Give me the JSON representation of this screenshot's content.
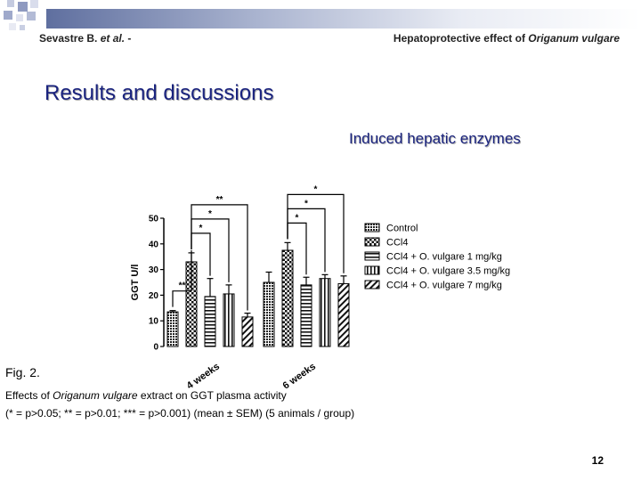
{
  "header": {
    "left_prefix": "Sevastre B.",
    "left_italic": "et al.",
    "left_suffix": "-",
    "right_prefix": "Hepatoprotective effect of",
    "right_italic": "Origanum vulgare"
  },
  "title": "Results and discussions",
  "subtitle": "Induced hepatic enzymes",
  "caption": {
    "label": "Fig. 2.",
    "desc_prefix": "Effects of",
    "desc_italic": "Origanum vulgare",
    "desc_suffix": "extract on GGT plasma activity",
    "note": "(* = p>0.05; ** = p>0.01; *** = p>0.001) (mean ± SEM) (5 animals / group)"
  },
  "page_number": "12",
  "colors": {
    "title": "#1a237e",
    "band": "#5f6f9f"
  },
  "chart_data": {
    "type": "bar",
    "ylabel": "GGT U/l",
    "xlabel": "",
    "ylim": [
      0,
      50
    ],
    "yticks": [
      0,
      10,
      20,
      30,
      40,
      50
    ],
    "categories": [
      "4 weeks",
      "6 weeks"
    ],
    "legend_position": "right",
    "series": [
      {
        "name": "Control",
        "pattern": "dots",
        "values": [
          13.5,
          25
        ],
        "errors": [
          0.5,
          4
        ]
      },
      {
        "name": "CCl4",
        "pattern": "checker",
        "values": [
          33,
          37.5
        ],
        "errors": [
          3.5,
          3
        ]
      },
      {
        "name": "CCl4 + O. vulgare 1 mg/kg",
        "pattern": "hlines",
        "values": [
          19.5,
          24
        ],
        "errors": [
          7,
          3
        ]
      },
      {
        "name": "CCl4 + O. vulgare 3.5 mg/kg",
        "pattern": "vlines",
        "values": [
          20.5,
          26.5
        ],
        "errors": [
          3.5,
          1.5
        ]
      },
      {
        "name": "CCl4 + O. vulgare 7 mg/kg",
        "pattern": "diag",
        "values": [
          11.5,
          24.5
        ],
        "errors": [
          1.5,
          3
        ]
      }
    ],
    "significance": [
      {
        "group": 0,
        "from": 0,
        "to": 1,
        "label": "**"
      },
      {
        "group": 0,
        "from": 1,
        "to": 2,
        "label": "*"
      },
      {
        "group": 0,
        "from": 1,
        "to": 3,
        "label": "*"
      },
      {
        "group": 0,
        "from": 1,
        "to": 4,
        "label": "**"
      },
      {
        "group": 1,
        "from": 1,
        "to": 2,
        "label": "*"
      },
      {
        "group": 1,
        "from": 1,
        "to": 3,
        "label": "*"
      },
      {
        "group": 1,
        "from": 1,
        "to": 4,
        "label": "*"
      }
    ]
  }
}
